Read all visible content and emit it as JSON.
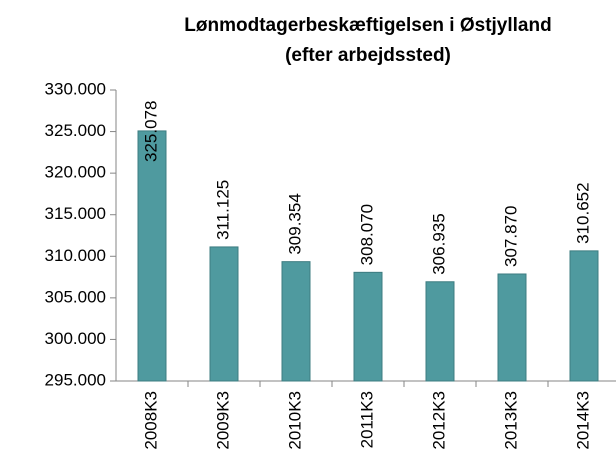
{
  "chart_data": {
    "type": "bar",
    "title": "Lønmodtagerbeskæftigelsen i Østjylland",
    "subtitle": "(efter arbejdssted)",
    "categories": [
      "2008K3",
      "2009K3",
      "2010K3",
      "2011K3",
      "2012K3",
      "2013K3",
      "2014K3"
    ],
    "values": [
      325078,
      311125,
      309354,
      308070,
      306935,
      307870,
      310652
    ],
    "value_labels": [
      "325.078",
      "311.125",
      "309.354",
      "308.070",
      "306.935",
      "307.870",
      "310.652"
    ],
    "color": "#4f9a9f",
    "ylim": [
      295000,
      330000
    ],
    "yticks": [
      {
        "value": 295000,
        "label": "295.000"
      },
      {
        "value": 300000,
        "label": "300.000"
      },
      {
        "value": 305000,
        "label": "305.000"
      },
      {
        "value": 310000,
        "label": "310.000"
      },
      {
        "value": 315000,
        "label": "315.000"
      },
      {
        "value": 320000,
        "label": "320.000"
      },
      {
        "value": 325000,
        "label": "325.000"
      },
      {
        "value": 330000,
        "label": "330.000"
      }
    ],
    "grid": false
  }
}
